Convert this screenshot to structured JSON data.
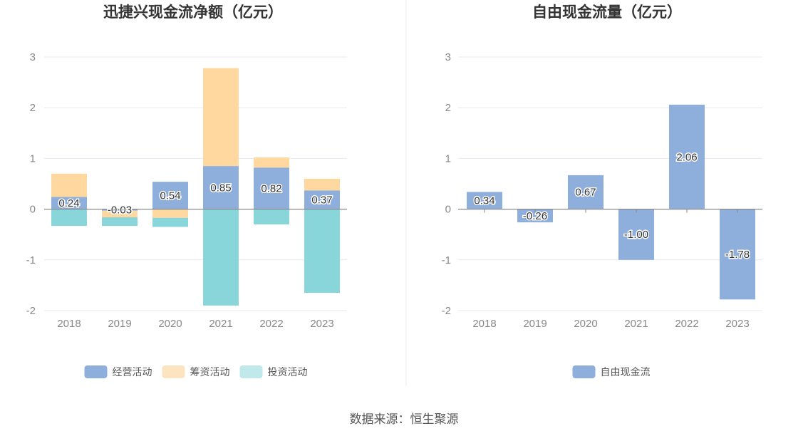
{
  "source_label": "数据来源：恒生聚源",
  "chart_data": [
    {
      "type": "bar",
      "stacked": true,
      "title": "迅捷兴现金流净额（亿元）",
      "categories": [
        "2018",
        "2019",
        "2020",
        "2021",
        "2022",
        "2023"
      ],
      "ylim": [
        -2,
        3
      ],
      "yticks": [
        "3",
        "2",
        "1",
        "0",
        "-1",
        "-2"
      ],
      "series": [
        {
          "name": "经营活动",
          "color": "#8eaedc",
          "values": [
            0.24,
            -0.03,
            0.54,
            0.85,
            0.82,
            0.37
          ],
          "labels": [
            "0.24",
            "-0.03",
            "0.54",
            "0.85",
            "0.82",
            "0.37"
          ]
        },
        {
          "name": "筹资活动",
          "color": "#fed89e",
          "values": [
            0.46,
            -0.13,
            -0.17,
            1.93,
            0.2,
            0.23
          ]
        },
        {
          "name": "投资活动",
          "color": "#88d6d9",
          "values": [
            -0.33,
            -0.17,
            -0.18,
            -1.9,
            -0.3,
            -1.65
          ]
        }
      ],
      "legend_colors": [
        "#8eaedc",
        "#fde4c0",
        "#c0e9ec"
      ]
    },
    {
      "type": "bar",
      "stacked": false,
      "title": "自由现金流量（亿元）",
      "categories": [
        "2018",
        "2019",
        "2020",
        "2021",
        "2022",
        "2023"
      ],
      "ylim": [
        -2,
        3
      ],
      "yticks": [
        "3",
        "2",
        "1",
        "0",
        "-1",
        "-2"
      ],
      "series": [
        {
          "name": "自由现金流",
          "color": "#8eaedc",
          "values": [
            0.34,
            -0.26,
            0.67,
            -1.0,
            2.06,
            -1.78
          ],
          "labels": [
            "0.34",
            "-0.26",
            "0.67",
            "-1.00",
            "2.06",
            "-1.78"
          ]
        }
      ],
      "legend_colors": [
        "#8eaedc"
      ]
    }
  ]
}
